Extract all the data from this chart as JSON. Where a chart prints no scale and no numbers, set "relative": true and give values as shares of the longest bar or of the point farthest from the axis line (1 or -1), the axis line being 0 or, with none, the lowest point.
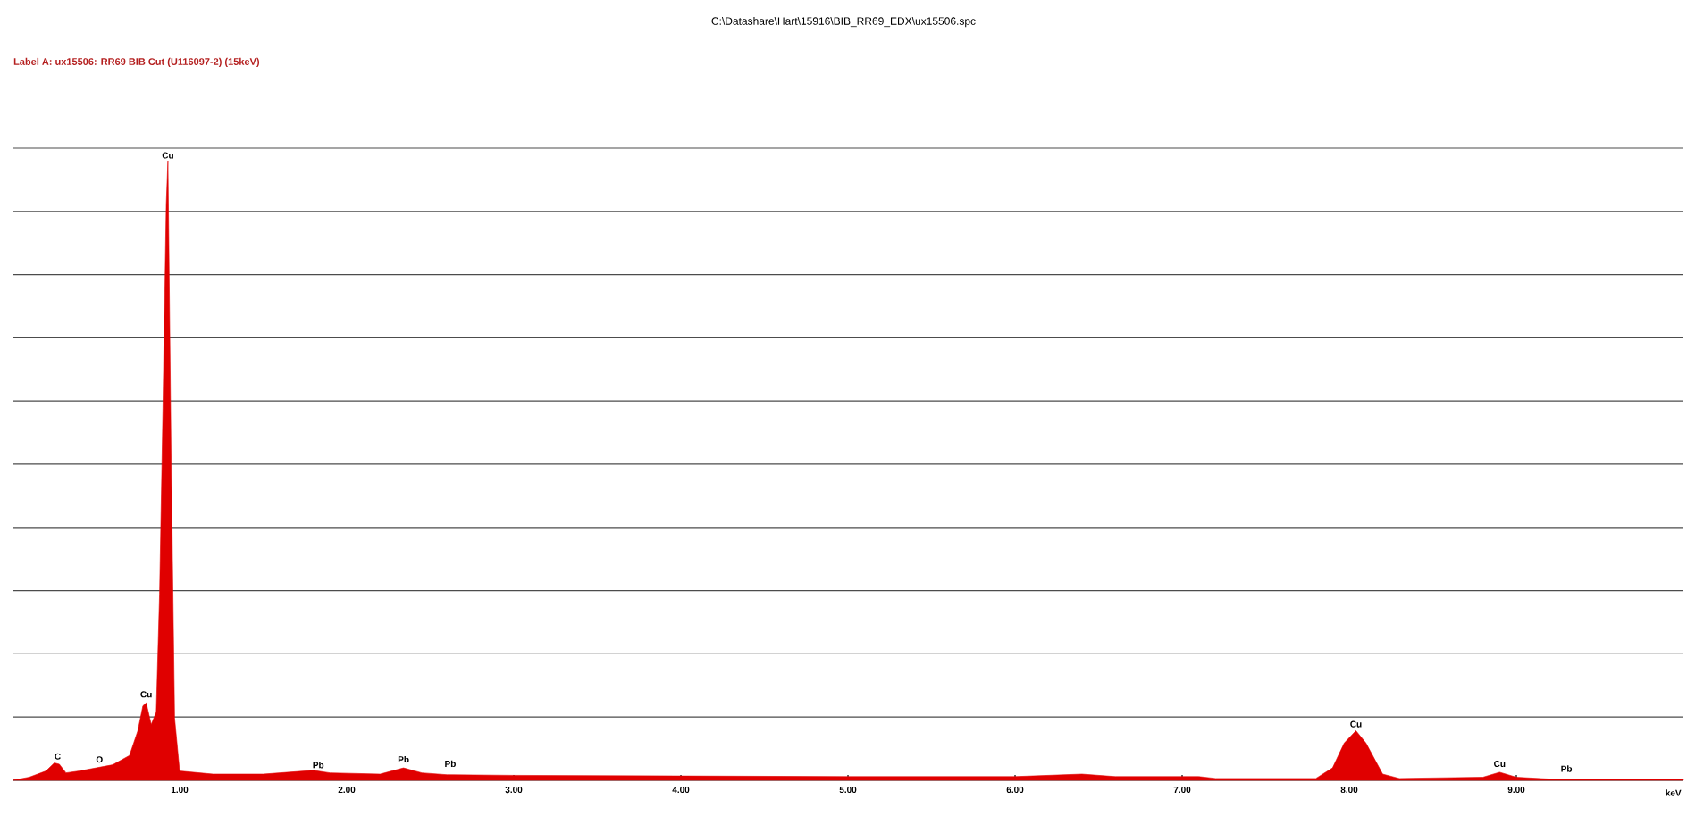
{
  "chart_data": {
    "type": "area",
    "title": "C:\\Datashare\\Hart\\15916\\BIB_RR69_EDX\\ux15506.spc",
    "subtitle": "Label A: ux15506: RR69 BIB Cut (U116097-2) (15keV)",
    "xlabel": "keV",
    "relative": true,
    "grid": "y",
    "x": [
      0.0,
      0.1,
      0.2,
      0.25,
      0.28,
      0.32,
      0.4,
      0.5,
      0.6,
      0.7,
      0.75,
      0.78,
      0.8,
      0.83,
      0.86,
      0.88,
      0.9,
      0.92,
      0.93,
      0.95,
      0.97,
      1.0,
      1.2,
      1.5,
      1.8,
      1.9,
      2.2,
      2.34,
      2.45,
      2.6,
      3.0,
      4.0,
      5.0,
      6.0,
      6.4,
      6.6,
      7.1,
      7.2,
      7.8,
      7.9,
      7.97,
      8.04,
      8.1,
      8.2,
      8.3,
      8.8,
      8.9,
      9.0,
      9.2,
      10.0
    ],
    "series": [
      {
        "color": "#e00000",
        "values": [
          0.0,
          0.005,
          0.015,
          0.028,
          0.026,
          0.012,
          0.015,
          0.02,
          0.025,
          0.04,
          0.08,
          0.12,
          0.125,
          0.09,
          0.11,
          0.3,
          0.6,
          0.93,
          1.0,
          0.5,
          0.1,
          0.015,
          0.01,
          0.01,
          0.016,
          0.012,
          0.01,
          0.02,
          0.012,
          0.009,
          0.008,
          0.007,
          0.006,
          0.006,
          0.01,
          0.006,
          0.006,
          0.003,
          0.003,
          0.02,
          0.06,
          0.08,
          0.06,
          0.01,
          0.003,
          0.005,
          0.013,
          0.005,
          0.002,
          0.002
        ]
      }
    ],
    "xlim": [
      0,
      10
    ],
    "xticks": [
      {
        "value": 1,
        "label": "1.00"
      },
      {
        "value": 2,
        "label": "2.00"
      },
      {
        "value": 3,
        "label": "3.00"
      },
      {
        "value": 4,
        "label": "4.00"
      },
      {
        "value": 5,
        "label": "5.00"
      },
      {
        "value": 6,
        "label": "6.00"
      },
      {
        "value": 7,
        "label": "7.00"
      },
      {
        "value": 8,
        "label": "8.00"
      },
      {
        "value": 9,
        "label": "9.00"
      }
    ],
    "annotations": [
      {
        "text": "C",
        "x": 0.27,
        "y": 0.03
      },
      {
        "text": "O",
        "x": 0.52,
        "y": 0.025
      },
      {
        "text": "Cu",
        "x": 0.8,
        "y": 0.13
      },
      {
        "text": "Cu",
        "x": 0.93,
        "y": 1.0
      },
      {
        "text": "Pb",
        "x": 1.83,
        "y": 0.016
      },
      {
        "text": "Pb",
        "x": 2.34,
        "y": 0.025
      },
      {
        "text": "Pb",
        "x": 2.62,
        "y": 0.018
      },
      {
        "text": "Cu",
        "x": 8.04,
        "y": 0.082
      },
      {
        "text": "Cu",
        "x": 8.9,
        "y": 0.018
      },
      {
        "text": "Pb",
        "x": 9.3,
        "y": 0.01
      }
    ]
  }
}
